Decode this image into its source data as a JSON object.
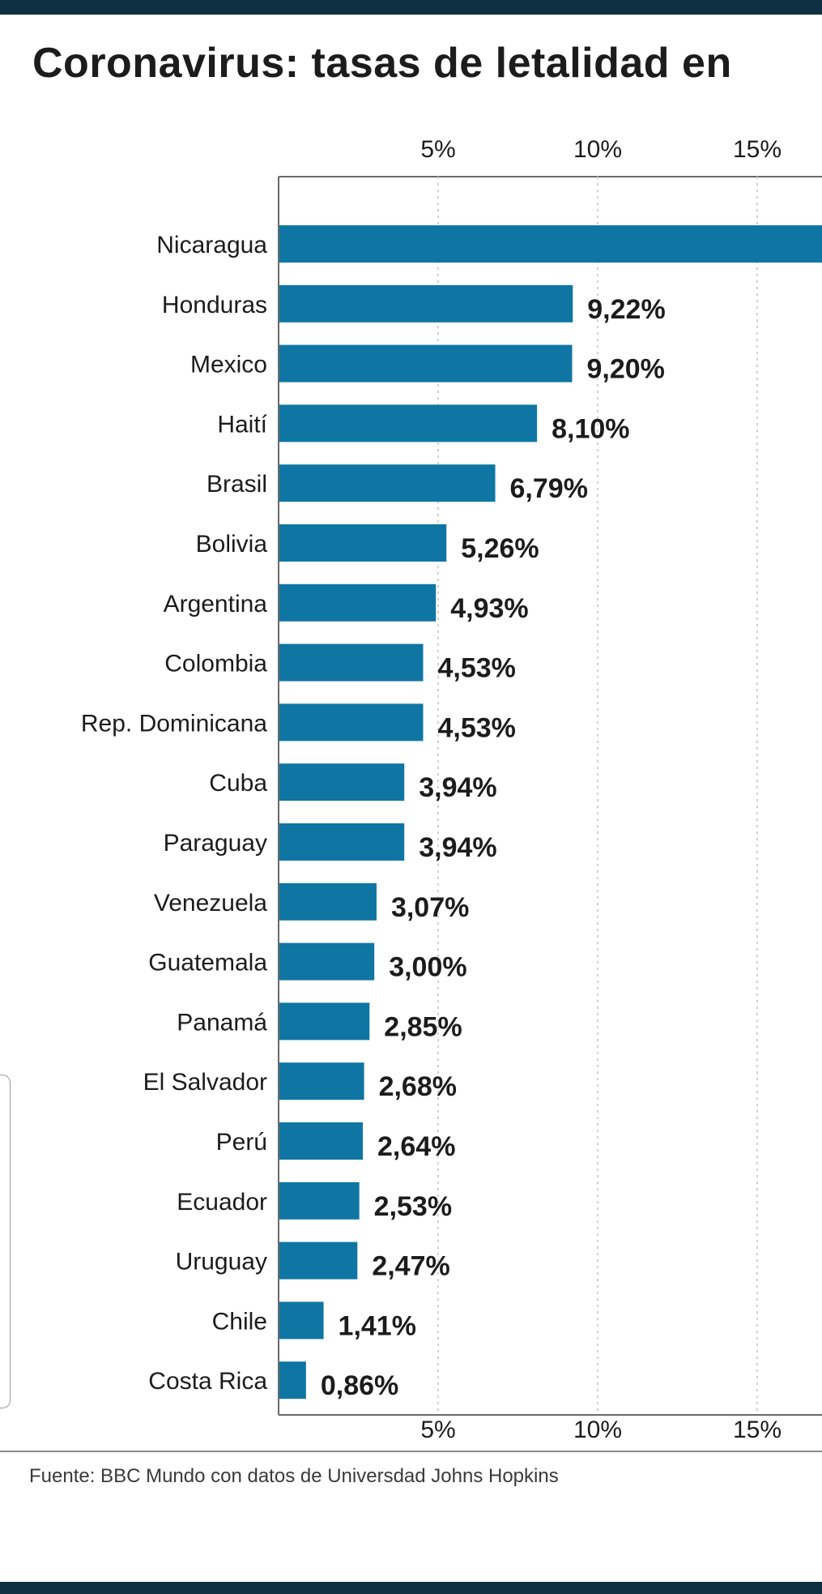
{
  "header": {
    "title": "Coronavirus: tasas de letalidad en"
  },
  "footer": {
    "source": "Fuente: BBC Mundo con datos de Universdad Johns Hopkins"
  },
  "colors": {
    "bar": "#0f76a3",
    "top_bar": "#0e2f40",
    "grid": "#d0d0d0",
    "axis": "#6a6a6a",
    "text": "#1c1c1c"
  },
  "chart_data": {
    "type": "bar",
    "orientation": "horizontal",
    "title": "Coronavirus: tasas de letalidad en",
    "categories": [
      "Nicaragua",
      "Honduras",
      "Mexico",
      "Haití",
      "Brasil",
      "Bolivia",
      "Argentina",
      "Colombia",
      "Rep. Dominicana",
      "Cuba",
      "Paraguay",
      "Venezuela",
      "Guatemala",
      "Panamá",
      "El Salvador",
      "Perú",
      "Ecuador",
      "Uruguay",
      "Chile",
      "Costa Rica"
    ],
    "values": [
      17.5,
      9.22,
      9.2,
      8.1,
      6.79,
      5.26,
      4.93,
      4.53,
      4.53,
      3.94,
      3.94,
      3.07,
      3.0,
      2.85,
      2.68,
      2.64,
      2.53,
      2.47,
      1.41,
      0.86
    ],
    "data_labels": [
      "",
      "9,22%",
      "9,20%",
      "8,10%",
      "6,79%",
      "5,26%",
      "4,93%",
      "4,53%",
      "4,53%",
      "3,94%",
      "3,94%",
      "3,07%",
      "3,00%",
      "2,85%",
      "2,68%",
      "2,64%",
      "2,53%",
      "2,47%",
      "1,41%",
      "0,86%"
    ],
    "x_ticks": [
      5,
      10,
      15
    ],
    "x_tick_labels": [
      "5%",
      "10%",
      "15%"
    ],
    "xlim": [
      0,
      17.2
    ],
    "grid": true,
    "xlabel": "",
    "ylabel": ""
  }
}
